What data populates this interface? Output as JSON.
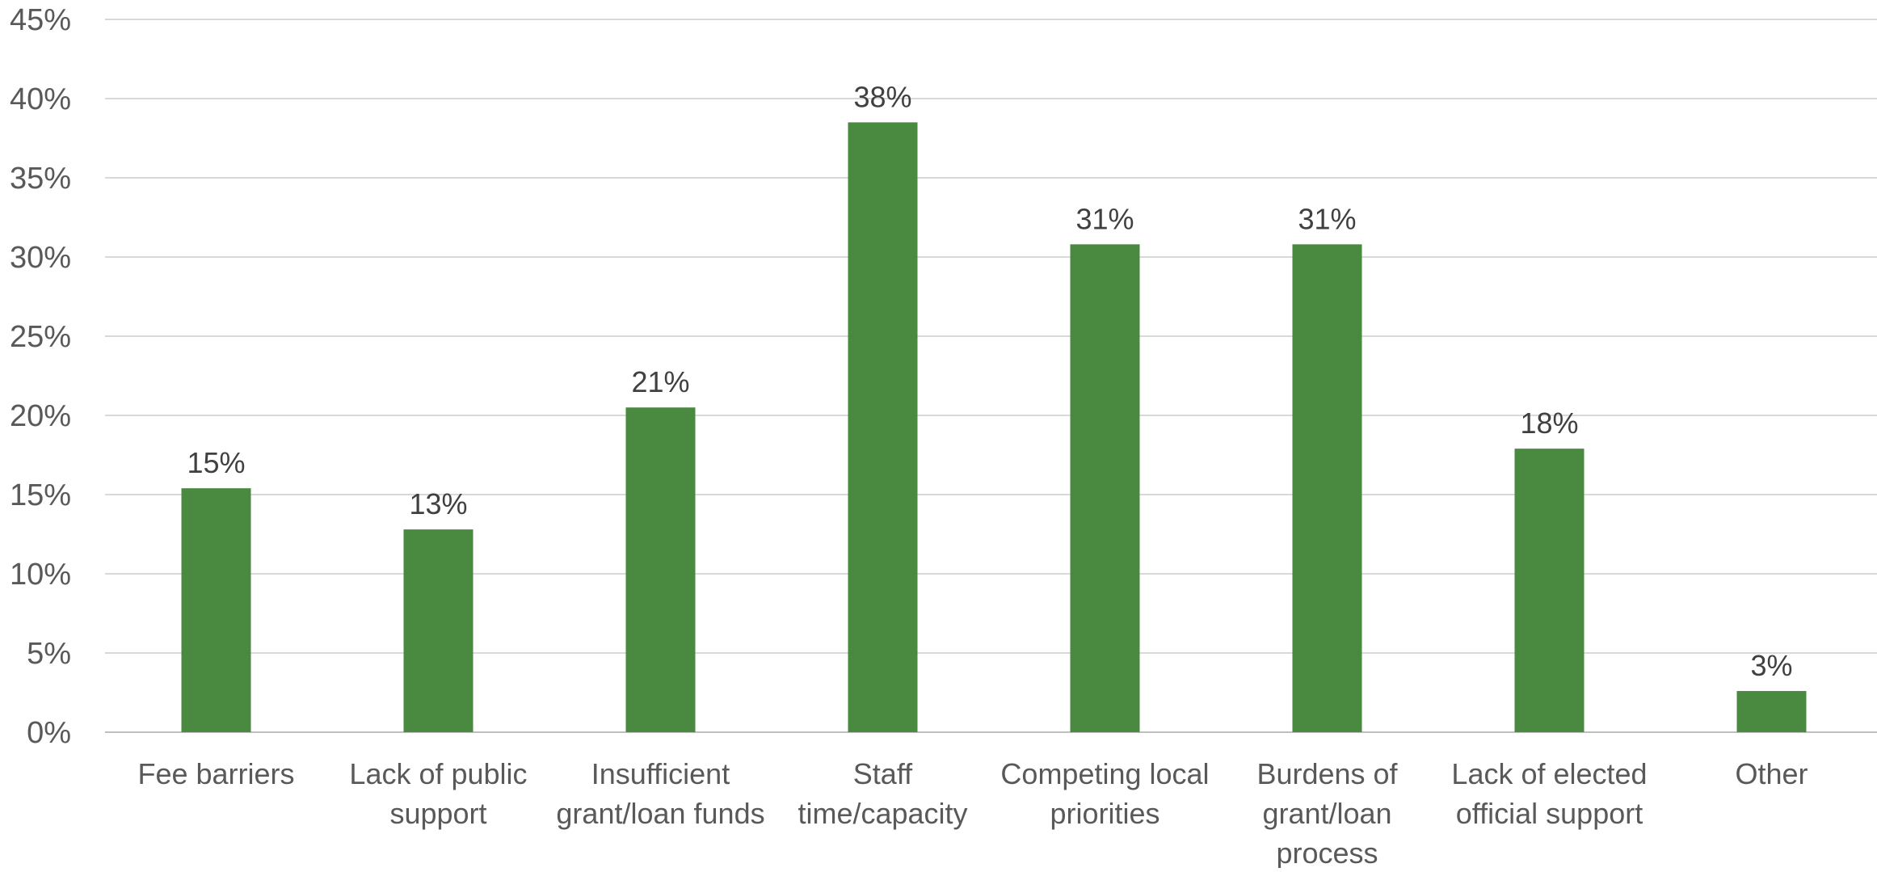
{
  "chart_data": {
    "type": "bar",
    "title": "",
    "xlabel": "",
    "ylabel": "",
    "categories": [
      [
        "Fee barriers"
      ],
      [
        "Lack of public",
        "support"
      ],
      [
        "Insufficient",
        "grant/loan funds"
      ],
      [
        "Staff",
        "time/capacity"
      ],
      [
        "Competing local",
        "priorities"
      ],
      [
        "Burdens of",
        "grant/loan",
        "process"
      ],
      [
        "Lack of elected",
        "official support"
      ],
      [
        "Other"
      ]
    ],
    "values": [
      15.4,
      12.8,
      20.5,
      38.5,
      30.8,
      30.8,
      17.9,
      2.6
    ],
    "data_labels": [
      "15%",
      "13%",
      "21%",
      "38%",
      "31%",
      "31%",
      "18%",
      "3%"
    ],
    "ylim": [
      0,
      45
    ],
    "yticks": [
      0,
      5,
      10,
      15,
      20,
      25,
      30,
      35,
      40,
      45
    ],
    "ytick_labels": [
      "0%",
      "5%",
      "10%",
      "15%",
      "20%",
      "25%",
      "30%",
      "35%",
      "40%",
      "45%"
    ],
    "grid": true,
    "legend": "none",
    "colors": {
      "bar": "#4A8A40",
      "grid": "#D9D9D9",
      "axis": "#BFBFBF"
    }
  }
}
